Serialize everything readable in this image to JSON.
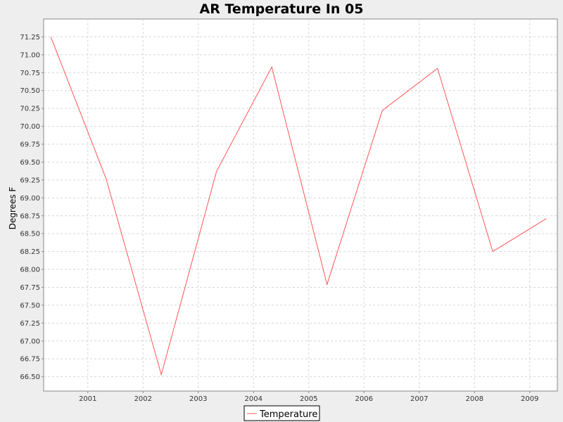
{
  "chart_data": {
    "type": "line",
    "title": "AR Temperature In 05",
    "xlabel": "",
    "ylabel": "Degrees F",
    "x_ticks": [
      "2001",
      "2002",
      "2003",
      "2004",
      "2005",
      "2006",
      "2007",
      "2008",
      "2009"
    ],
    "x_tick_values": [
      2001,
      2002,
      2003,
      2004,
      2005,
      2006,
      2007,
      2008,
      2009
    ],
    "xlim": [
      2000.2,
      2009.5
    ],
    "ylim": [
      66.3,
      71.5
    ],
    "y_ticks": [
      "66.50",
      "66.75",
      "67.00",
      "67.25",
      "67.50",
      "67.75",
      "68.00",
      "68.25",
      "68.50",
      "68.75",
      "69.00",
      "69.25",
      "69.50",
      "69.75",
      "70.00",
      "70.25",
      "70.50",
      "70.75",
      "71.00",
      "71.25"
    ],
    "y_tick_values": [
      66.5,
      66.75,
      67.0,
      67.25,
      67.5,
      67.75,
      68.0,
      68.25,
      68.5,
      68.75,
      69.0,
      69.25,
      69.5,
      69.75,
      70.0,
      70.25,
      70.5,
      70.75,
      71.0,
      71.25
    ],
    "grid": true,
    "legend": "bottom",
    "series": [
      {
        "name": "Temperature",
        "color": "#ff5555",
        "x": [
          2000.33,
          2001.33,
          2002.33,
          2003.33,
          2004.33,
          2005.33,
          2006.33,
          2007.33,
          2008.33,
          2009.3
        ],
        "y": [
          71.25,
          69.27,
          66.53,
          69.37,
          70.83,
          67.79,
          70.22,
          70.81,
          68.25,
          68.71
        ]
      }
    ]
  }
}
